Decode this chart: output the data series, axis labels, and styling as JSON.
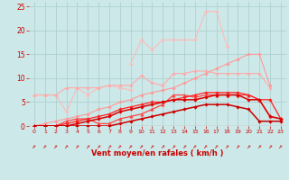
{
  "x": [
    0,
    1,
    2,
    3,
    4,
    5,
    6,
    7,
    8,
    9,
    10,
    11,
    12,
    13,
    14,
    15,
    16,
    17,
    18,
    19,
    20,
    21,
    22,
    23
  ],
  "series": [
    {
      "name": "line1_lightest_peak",
      "color": "#ffbbbb",
      "linewidth": 0.8,
      "marker": "D",
      "markersize": 1.8,
      "y": [
        null,
        null,
        null,
        null,
        null,
        null,
        null,
        null,
        null,
        13.0,
        18.0,
        16.0,
        18.0,
        18.0,
        18.0,
        18.0,
        24.0,
        24.0,
        16.5,
        null,
        null,
        null,
        null,
        null
      ]
    },
    {
      "name": "line2_lightest_base",
      "color": "#ffbbbb",
      "linewidth": 0.8,
      "marker": "D",
      "markersize": 1.8,
      "y": [
        6.5,
        6.5,
        6.5,
        3.0,
        8.0,
        6.5,
        8.0,
        8.5,
        8.0,
        7.5,
        null,
        null,
        null,
        null,
        null,
        null,
        null,
        null,
        null,
        null,
        null,
        null,
        null,
        null
      ]
    },
    {
      "name": "line3_light_diagonal",
      "color": "#ffaaaa",
      "linewidth": 0.8,
      "marker": "D",
      "markersize": 1.8,
      "y": [
        6.5,
        6.5,
        6.5,
        8.0,
        8.0,
        8.0,
        8.0,
        8.5,
        8.5,
        8.5,
        10.5,
        9.0,
        8.5,
        11.0,
        11.0,
        11.5,
        11.5,
        11.0,
        11.0,
        11.0,
        11.0,
        11.0,
        8.0,
        null
      ]
    },
    {
      "name": "line4_medium_diagonal",
      "color": "#ff9999",
      "linewidth": 0.8,
      "marker": "D",
      "markersize": 1.8,
      "y": [
        0.0,
        0.5,
        1.0,
        1.5,
        2.0,
        2.5,
        3.5,
        4.0,
        5.0,
        5.5,
        6.5,
        7.0,
        7.5,
        8.0,
        9.0,
        10.0,
        11.0,
        12.0,
        13.0,
        14.0,
        15.0,
        15.0,
        8.5,
        null
      ]
    },
    {
      "name": "line5_dark_red_tri",
      "color": "#ff4444",
      "linewidth": 0.9,
      "marker": "^",
      "markersize": 2.5,
      "y": [
        0.0,
        0.0,
        0.0,
        1.0,
        1.5,
        1.5,
        0.5,
        0.5,
        1.5,
        2.0,
        2.5,
        3.5,
        4.5,
        6.5,
        6.5,
        6.0,
        6.5,
        6.5,
        6.5,
        6.5,
        6.5,
        5.5,
        2.0,
        1.5
      ]
    },
    {
      "name": "line6_dark_red_diamond",
      "color": "#ff2222",
      "linewidth": 0.9,
      "marker": "D",
      "markersize": 1.8,
      "y": [
        0.0,
        0.0,
        0.0,
        0.5,
        1.0,
        1.5,
        2.0,
        2.5,
        3.5,
        4.0,
        4.5,
        5.0,
        5.0,
        5.5,
        6.0,
        6.5,
        7.0,
        7.0,
        7.0,
        7.0,
        6.5,
        5.5,
        5.5,
        1.5
      ]
    },
    {
      "name": "line7_red_bold",
      "color": "#dd0000",
      "linewidth": 1.1,
      "marker": "D",
      "markersize": 1.8,
      "y": [
        0.0,
        0.0,
        0.0,
        0.0,
        0.5,
        1.0,
        1.5,
        2.0,
        3.0,
        3.5,
        4.0,
        4.5,
        5.0,
        5.5,
        5.5,
        5.5,
        6.0,
        6.5,
        6.5,
        6.5,
        5.5,
        5.5,
        2.0,
        1.5
      ]
    },
    {
      "name": "line8_flat_bottom",
      "color": "#cc0000",
      "linewidth": 1.1,
      "marker": "D",
      "markersize": 1.8,
      "y": [
        0.0,
        0.0,
        0.0,
        0.0,
        0.0,
        0.0,
        0.0,
        0.0,
        0.5,
        1.0,
        1.5,
        2.0,
        2.5,
        3.0,
        3.5,
        4.0,
        4.5,
        4.5,
        4.5,
        4.0,
        3.5,
        1.0,
        1.0,
        1.0
      ]
    }
  ],
  "xlabel": "Vent moyen/en rafales ( km/h )",
  "xlim": [
    -0.5,
    23.5
  ],
  "ylim": [
    0,
    26
  ],
  "yticks": [
    0,
    5,
    10,
    15,
    20,
    25
  ],
  "xticks": [
    0,
    1,
    2,
    3,
    4,
    5,
    6,
    7,
    8,
    9,
    10,
    11,
    12,
    13,
    14,
    15,
    16,
    17,
    18,
    19,
    20,
    21,
    22,
    23
  ],
  "background_color": "#cce8e8",
  "grid_color": "#aacccc",
  "xlabel_color": "#cc0000",
  "tick_color": "#cc0000",
  "arrow_color": "#cc0000"
}
